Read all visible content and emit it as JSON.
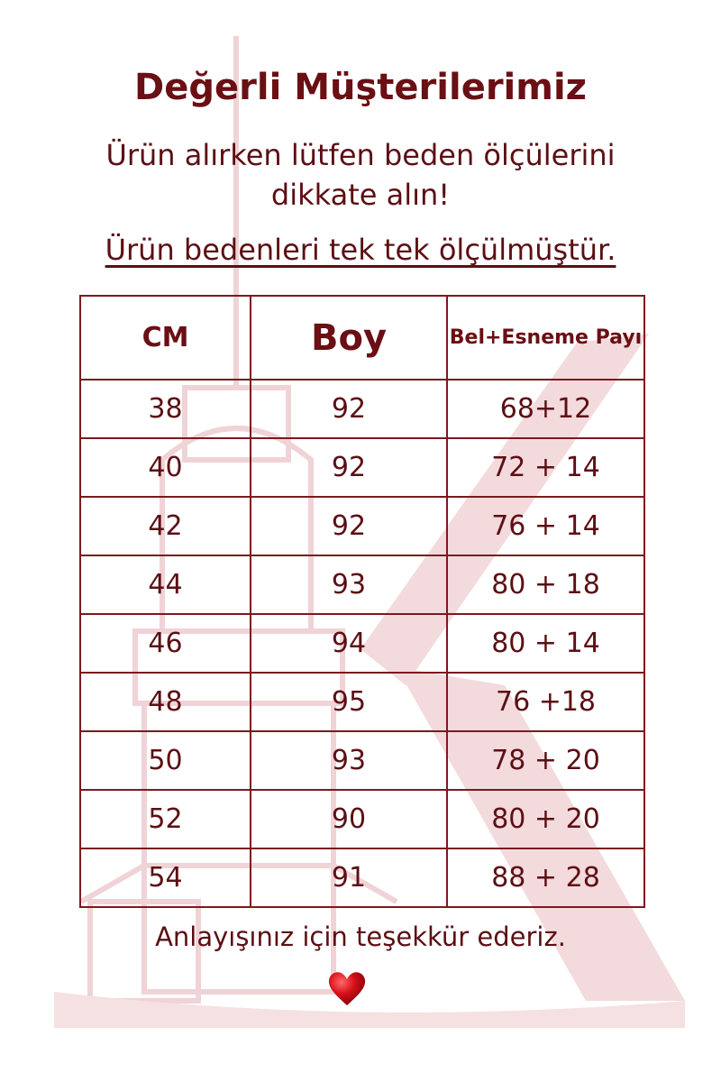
{
  "title": "Değerli Müşterilerimiz",
  "subtitle": "Ürün alırken lütfen beden ölçülerini dikkate alın!",
  "note": "Ürün bedenleri tek tek ölçülmüştür.",
  "table": {
    "headers": [
      "CM",
      "Boy",
      "Bel+Esneme Payı"
    ],
    "rows": [
      [
        "38",
        "92",
        "68+12"
      ],
      [
        "40",
        "92",
        "72 + 14"
      ],
      [
        "42",
        "92",
        "76 + 14"
      ],
      [
        "44",
        "93",
        "80 + 18"
      ],
      [
        "46",
        "94",
        "80 + 14"
      ],
      [
        "48",
        "95",
        "76 +18"
      ],
      [
        "50",
        "93",
        "78 + 20"
      ],
      [
        "52",
        "90",
        "80 + 20"
      ],
      [
        "54",
        "91",
        "88 + 28"
      ]
    ]
  },
  "thanks": "Anlayışınız için teşekkür ederiz.",
  "icons": {
    "footer": "heart-icon",
    "watermark": "maiden-tower-k-logo"
  },
  "colors": {
    "text": "#6a0f14",
    "border": "#7a1a1e",
    "watermark": "#f2d9db",
    "heart": "#d8101a"
  }
}
